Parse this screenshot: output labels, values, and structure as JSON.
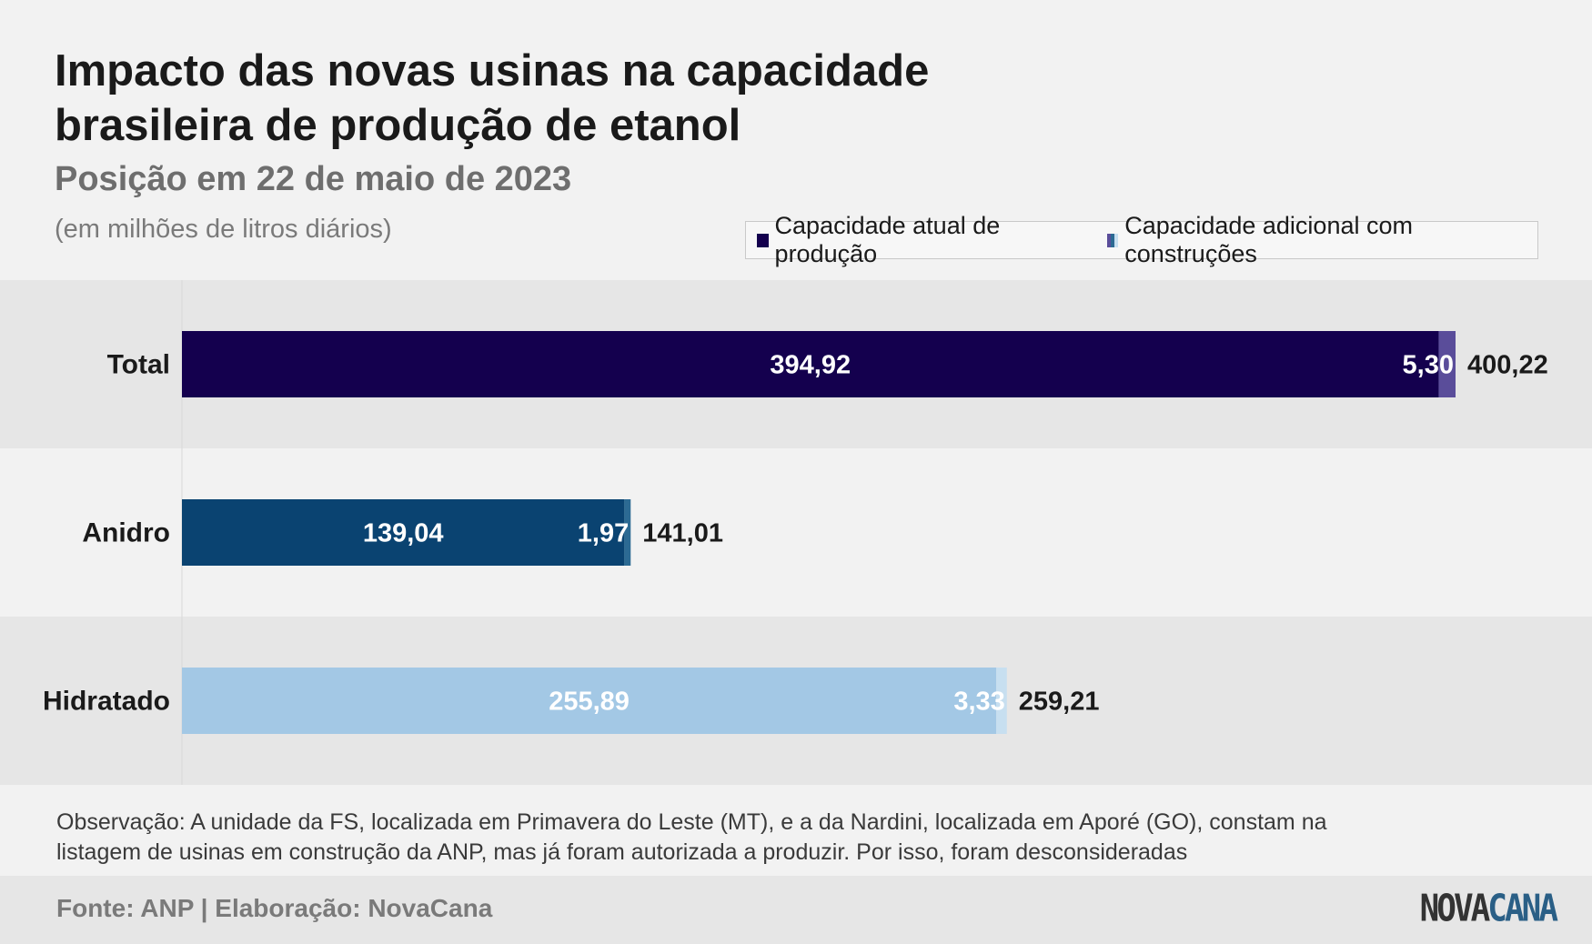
{
  "title": "Impacto das novas usinas na capacidade brasileira de produção de etanol",
  "subtitle": "Posição em 22 de maio de 2023",
  "unit_note": "(em milhões de litros diários)",
  "legend": {
    "current": "Capacidade atual de produção",
    "additional": "Capacidade adicional com construções"
  },
  "chart_data": {
    "type": "bar",
    "orientation": "horizontal",
    "stacked": true,
    "categories": [
      "Total",
      "Anidro",
      "Hidratado"
    ],
    "series": [
      {
        "name": "Capacidade atual de produção",
        "values": [
          394.92,
          139.04,
          255.89
        ]
      },
      {
        "name": "Capacidade adicional com construções",
        "values": [
          5.3,
          1.97,
          3.33
        ]
      }
    ],
    "totals": [
      400.22,
      141.01,
      259.21
    ],
    "current_labels": [
      "394,92",
      "139,04",
      "255,89"
    ],
    "additional_labels": [
      "5,30",
      "1,97",
      "3,33"
    ],
    "total_labels": [
      "400,22",
      "141,01",
      "259,21"
    ],
    "xlim": [
      0,
      400.22
    ],
    "colors": {
      "current": [
        "#14004e",
        "#0a4371",
        "#a3c8e5"
      ],
      "additional": [
        "#5a4d9a",
        "#2c6a93",
        "#c7dff0"
      ]
    },
    "row_backgrounds": [
      "#e6e6e6",
      "#f2f2f2",
      "#e6e6e6"
    ],
    "grid": false
  },
  "note": "Observação: A unidade da FS, localizada em Primavera do Leste (MT), e a da Nardini, localizada em Aporé (GO), constam na listagem de usinas em construção da ANP, mas já foram autorizada a produzir. Por isso, foram desconsideradas",
  "source": "Fonte: ANP | Elaboração: NovaCana",
  "logo": {
    "part1": "NOVA",
    "part2": "CANA"
  }
}
